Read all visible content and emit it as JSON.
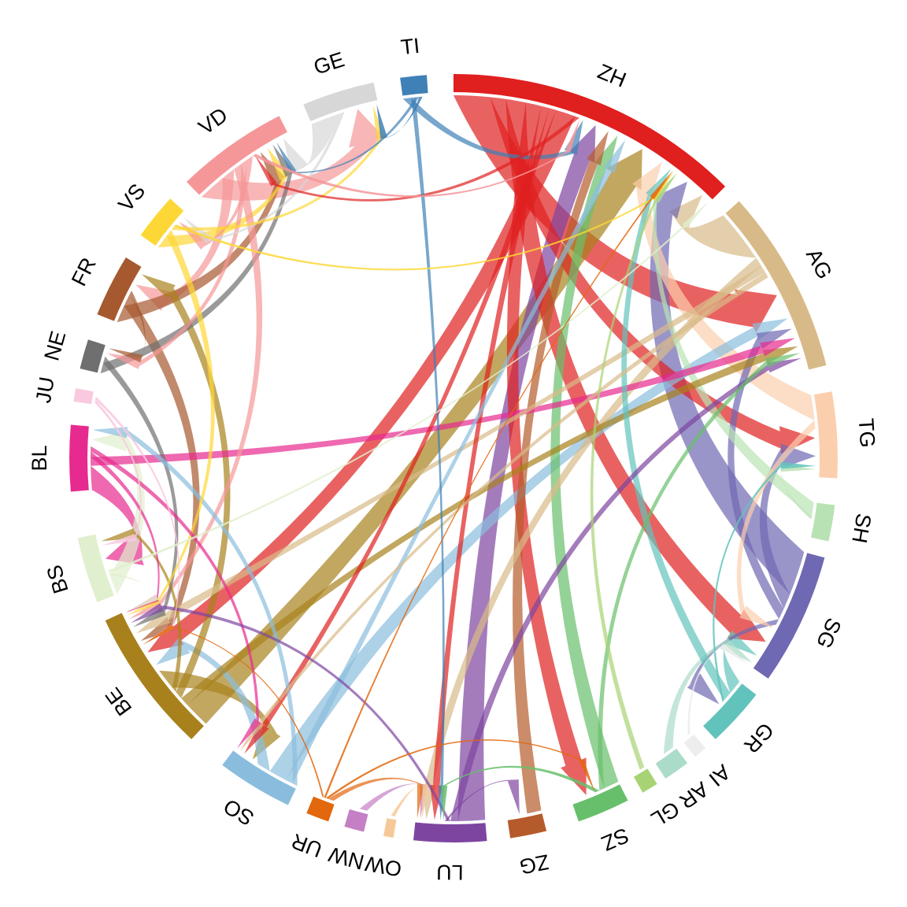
{
  "chart_data": {
    "type": "chord",
    "title": "",
    "description": "Chord diagram of flows between Swiss cantons, ribbons colored by source canton with arrowheads at target",
    "background": "#ffffff",
    "entities": [
      {
        "id": "ZH",
        "label": "ZH",
        "color": "#e01f1f",
        "arc": [
          0,
          45
        ]
      },
      {
        "id": "AG",
        "label": "AG",
        "color": "#d8ba89",
        "arc": [
          48,
          76
        ]
      },
      {
        "id": "TG",
        "label": "TG",
        "color": "#fbcfad",
        "arc": [
          80,
          93
        ]
      },
      {
        "id": "SH",
        "label": "SH",
        "color": "#b9e2b4",
        "arc": [
          97,
          102.5
        ]
      },
      {
        "id": "SG",
        "label": "SG",
        "color": "#6f68b2",
        "arc": [
          105,
          125
        ]
      },
      {
        "id": "GR",
        "label": "GR",
        "color": "#62c3bc",
        "arc": [
          128,
          137
        ]
      },
      {
        "id": "AI",
        "label": "AI",
        "color": "#ededed",
        "arc": [
          139,
          141
        ]
      },
      {
        "id": "AR",
        "label": "AR",
        "color": "#abdbc9",
        "arc": [
          142.5,
          146.5
        ]
      },
      {
        "id": "GL",
        "label": "GL",
        "color": "#a8d374",
        "arc": [
          148,
          150.5
        ]
      },
      {
        "id": "SZ",
        "label": "SZ",
        "color": "#68bf6b",
        "arc": [
          153,
          161
        ]
      },
      {
        "id": "ZG",
        "label": "ZG",
        "color": "#b55b2b",
        "arc": [
          166,
          171.5
        ]
      },
      {
        "id": "LU",
        "label": "LU",
        "color": "#7d45a0",
        "arc": [
          175,
          186
        ]
      },
      {
        "id": "OW",
        "label": "OW",
        "color": "#f7c897",
        "arc": [
          189,
          190.5
        ]
      },
      {
        "id": "NW",
        "label": "NW",
        "color": "#c57fc5",
        "arc": [
          193.5,
          196.5
        ]
      },
      {
        "id": "UR",
        "label": "UR",
        "color": "#e2670d",
        "arc": [
          199,
          202.5
        ]
      },
      {
        "id": "SO",
        "label": "SO",
        "color": "#8abddd",
        "arc": [
          205.5,
          217
        ]
      },
      {
        "id": "BE",
        "label": "BE",
        "color": "#a8811c",
        "arc": [
          223,
          245
        ]
      },
      {
        "id": "BS",
        "label": "BS",
        "color": "#e0efcd",
        "arc": [
          248,
          258
        ]
      },
      {
        "id": "BL",
        "label": "BL",
        "color": "#e72a8f",
        "arc": [
          265,
          275
        ]
      },
      {
        "id": "JU",
        "label": "JU",
        "color": "#f9c9df",
        "arc": [
          278.5,
          280.5
        ]
      },
      {
        "id": "NE",
        "label": "NE",
        "color": "#6f6f6f",
        "arc": [
          283.5,
          288
        ]
      },
      {
        "id": "FR",
        "label": "FR",
        "color": "#a6582f",
        "arc": [
          292,
          301.5
        ]
      },
      {
        "id": "VS",
        "label": "VS",
        "color": "#fdd735",
        "arc": [
          305.5,
          312.5
        ]
      },
      {
        "id": "VD",
        "label": "VD",
        "color": "#f59799",
        "arc": [
          316,
          333
        ]
      },
      {
        "id": "GE",
        "label": "GE",
        "color": "#d7d7d7",
        "arc": [
          337,
          348
        ]
      },
      {
        "id": "TI",
        "label": "TI",
        "color": "#3f80b7",
        "arc": [
          352,
          356
        ]
      }
    ],
    "flows": [
      {
        "from": "ZH",
        "to": "AG",
        "s": [
          0,
          5.8
        ],
        "t": [
          60.1,
          66.4
        ]
      },
      {
        "from": "ZH",
        "to": "TG",
        "s": [
          5.8,
          8.3
        ],
        "t": [
          85.3,
          88.3
        ]
      },
      {
        "from": "ZH",
        "to": "SG",
        "s": [
          8.3,
          11.5
        ],
        "t": [
          118.6,
          122.3
        ]
      },
      {
        "from": "ZH",
        "to": "SZ",
        "s": [
          11.5,
          14
        ],
        "t": [
          157,
          160
        ]
      },
      {
        "from": "ZH",
        "to": "LU",
        "s": [
          14,
          15.3
        ],
        "t": [
          182.4,
          183.6
        ]
      },
      {
        "from": "ZH",
        "to": "SO",
        "s": [
          15.3,
          16.4
        ],
        "t": [
          214.8,
          215.8
        ]
      },
      {
        "from": "ZH",
        "to": "BE",
        "s": [
          16.4,
          19.6
        ],
        "t": [
          236.2,
          239
        ]
      },
      {
        "from": "ZH",
        "to": "VD",
        "s": [
          19.6,
          20.3
        ],
        "t": [
          326.5,
          327
        ]
      },
      {
        "from": "AG",
        "to": "ZH",
        "s": [
          48,
          56.5
        ],
        "t": [
          42,
          44.8
        ]
      },
      {
        "from": "AG",
        "to": "LU",
        "s": [
          56.5,
          58
        ],
        "t": [
          183.6,
          185
        ]
      },
      {
        "from": "AG",
        "to": "BE",
        "s": [
          58,
          59.2
        ],
        "t": [
          240.4,
          241.8
        ]
      },
      {
        "from": "AG",
        "to": "SO",
        "s": [
          59.2,
          60.1
        ],
        "t": [
          215.8,
          216.4
        ]
      },
      {
        "from": "TG",
        "to": "ZH",
        "s": [
          80,
          84
        ],
        "t": [
          33.9,
          36.4
        ]
      },
      {
        "from": "TG",
        "to": "SG",
        "s": [
          84,
          85.3
        ],
        "t": [
          117.3,
          118.6
        ]
      },
      {
        "from": "SH",
        "to": "ZH",
        "s": [
          97,
          99.2
        ],
        "t": [
          37.7,
          38.4
        ]
      },
      {
        "from": "SH",
        "to": "TG",
        "s": [
          99.2,
          99.7
        ],
        "t": [
          91.5,
          92
        ]
      },
      {
        "from": "SG",
        "to": "ZH",
        "s": [
          105,
          112
        ],
        "t": [
          38.4,
          42
        ]
      },
      {
        "from": "SG",
        "to": "TG",
        "s": [
          112,
          114.5
        ],
        "t": [
          88.3,
          91
        ]
      },
      {
        "from": "SG",
        "to": "AG",
        "s": [
          114.5,
          116.3
        ],
        "t": [
          68.2,
          69.9
        ]
      },
      {
        "from": "SG",
        "to": "GR",
        "s": [
          116.3,
          117.3
        ],
        "t": [
          131.8,
          133.8
        ]
      },
      {
        "from": "GR",
        "to": "SG",
        "s": [
          128,
          130.3
        ],
        "t": [
          122.3,
          123.8
        ]
      },
      {
        "from": "GR",
        "to": "ZH",
        "s": [
          130.3,
          131.8
        ],
        "t": [
          36.4,
          37.4
        ]
      },
      {
        "from": "GR",
        "to": "TG",
        "s": [
          131.8,
          132.2
        ],
        "t": [
          91,
          91.5
        ]
      },
      {
        "from": "AI",
        "to": "SG",
        "s": [
          139.3,
          139.8
        ],
        "t": [
          124.8,
          125.1
        ]
      },
      {
        "from": "AR",
        "to": "SG",
        "s": [
          142.8,
          144.6
        ],
        "t": [
          123.8,
          125
        ]
      },
      {
        "from": "GL",
        "to": "ZH",
        "s": [
          148.3,
          149.1
        ],
        "t": [
          37.9,
          38.3
        ]
      },
      {
        "from": "SZ",
        "to": "ZH",
        "s": [
          153,
          155.5
        ],
        "t": [
          26.1,
          27.8
        ]
      },
      {
        "from": "SZ",
        "to": "AG",
        "s": [
          155.5,
          156.3
        ],
        "t": [
          72.7,
          73.5
        ]
      },
      {
        "from": "SZ",
        "to": "LU",
        "s": [
          156.3,
          157
        ],
        "t": [
          181.4,
          181.8
        ]
      },
      {
        "from": "ZG",
        "to": "ZH",
        "s": [
          166,
          168.3
        ],
        "t": [
          24.6,
          26.1
        ]
      },
      {
        "from": "LU",
        "to": "ZH",
        "s": [
          175,
          179.3
        ],
        "t": [
          21.6,
          24.6
        ]
      },
      {
        "from": "LU",
        "to": "AG",
        "s": [
          179.3,
          180.5
        ],
        "t": [
          73.5,
          74.4
        ]
      },
      {
        "from": "LU",
        "to": "BE",
        "s": [
          180.5,
          181
        ],
        "t": [
          242.6,
          243.3
        ]
      },
      {
        "from": "LU",
        "to": "ZG",
        "s": [
          181,
          181.4
        ],
        "t": [
          169,
          170
        ]
      },
      {
        "from": "OW",
        "to": "LU",
        "s": [
          189.3,
          189.9
        ],
        "t": [
          184.8,
          185.1
        ]
      },
      {
        "from": "NW",
        "to": "LU",
        "s": [
          193.8,
          195
        ],
        "t": [
          185,
          185.5
        ]
      },
      {
        "from": "UR",
        "to": "LU",
        "s": [
          199.3,
          200.2
        ],
        "t": [
          185.5,
          186
        ]
      },
      {
        "from": "UR",
        "to": "SZ",
        "s": [
          200.2,
          200.6
        ],
        "t": [
          156.9,
          157.2
        ]
      },
      {
        "from": "UR",
        "to": "ZH",
        "s": [
          200.6,
          200.9
        ],
        "t": [
          37.2,
          37.45
        ]
      },
      {
        "from": "UR",
        "to": "BE",
        "s": [
          200.9,
          201.2
        ],
        "t": [
          238.9,
          239.15
        ]
      },
      {
        "from": "SO",
        "to": "BL",
        "s": [
          205.5,
          206.3
        ],
        "t": [
          274,
          275
        ]
      },
      {
        "from": "SO",
        "to": "ZH",
        "s": [
          206.3,
          207.5
        ],
        "t": [
          27.8,
          28.9
        ]
      },
      {
        "from": "SO",
        "to": "AG",
        "s": [
          207.5,
          210.4
        ],
        "t": [
          66.4,
          68.2
        ]
      },
      {
        "from": "SO",
        "to": "BE",
        "s": [
          210.4,
          212.6
        ],
        "t": [
          234.2,
          236.2
        ]
      },
      {
        "from": "BE",
        "to": "ZH",
        "s": [
          223,
          227.2
        ],
        "t": [
          28.9,
          33.9
        ]
      },
      {
        "from": "BE",
        "to": "AG",
        "s": [
          227.2,
          228.6
        ],
        "t": [
          71.3,
          72.7
        ]
      },
      {
        "from": "BE",
        "to": "FR",
        "s": [
          228.6,
          229.9
        ],
        "t": [
          299.8,
          301.3
        ]
      },
      {
        "from": "BE",
        "to": "BS",
        "s": [
          229.9,
          230.8
        ],
        "t": [
          256.3,
          257.2
        ]
      },
      {
        "from": "BE",
        "to": "SO",
        "s": [
          230.8,
          234.2
        ],
        "t": [
          212.6,
          214.8
        ]
      },
      {
        "from": "BS",
        "to": "BL",
        "s": [
          248,
          251.2
        ],
        "t": [
          271.9,
          274
        ]
      },
      {
        "from": "BS",
        "to": "BE",
        "s": [
          251.2,
          251.6
        ],
        "t": [
          244.7,
          245
        ]
      },
      {
        "from": "BS",
        "to": "ZH",
        "s": [
          251.6,
          252
        ],
        "t": [
          44.7,
          45
        ]
      },
      {
        "from": "BL",
        "to": "BS",
        "s": [
          265,
          268.8
        ],
        "t": [
          252,
          255.8
        ]
      },
      {
        "from": "BL",
        "to": "AG",
        "s": [
          268.8,
          270.2
        ],
        "t": [
          69.9,
          71.3
        ]
      },
      {
        "from": "BL",
        "to": "BE",
        "s": [
          270.2,
          271.1
        ],
        "t": [
          244.5,
          245
        ]
      },
      {
        "from": "BL",
        "to": "SO",
        "s": [
          271.1,
          271.9
        ],
        "t": [
          216.4,
          217
        ]
      },
      {
        "from": "JU",
        "to": "BS",
        "s": [
          278.8,
          279.3
        ],
        "t": [
          255.8,
          256.3
        ]
      },
      {
        "from": "JU",
        "to": "BE",
        "s": [
          279.3,
          279.8
        ],
        "t": [
          238.9,
          239.2
        ]
      },
      {
        "from": "NE",
        "to": "VD",
        "s": [
          283.5,
          285.2
        ],
        "t": [
          329.6,
          330.5
        ]
      },
      {
        "from": "NE",
        "to": "BE",
        "s": [
          285.2,
          286.3
        ],
        "t": [
          241.8,
          242.6
        ]
      },
      {
        "from": "FR",
        "to": "VD",
        "s": [
          292,
          294.8
        ],
        "t": [
          327,
          328.5
        ]
      },
      {
        "from": "FR",
        "to": "BE",
        "s": [
          294.8,
          296.8
        ],
        "t": [
          239,
          240.4
        ]
      },
      {
        "from": "FR",
        "to": "NE",
        "s": [
          296.8,
          297.5
        ],
        "t": [
          287.4,
          288
        ]
      },
      {
        "from": "VS",
        "to": "VD",
        "s": [
          305.5,
          307.8
        ],
        "t": [
          328.5,
          329.6
        ]
      },
      {
        "from": "VS",
        "to": "BE",
        "s": [
          307.8,
          309
        ],
        "t": [
          244,
          244.5
        ]
      },
      {
        "from": "VS",
        "to": "GE",
        "s": [
          309,
          309.7
        ],
        "t": [
          346.8,
          347.5
        ]
      },
      {
        "from": "VS",
        "to": "ZH",
        "s": [
          309.7,
          310.1
        ],
        "t": [
          37.4,
          37.7
        ]
      },
      {
        "from": "VD",
        "to": "GE",
        "s": [
          316,
          320.5
        ],
        "t": [
          342.5,
          346.8
        ]
      },
      {
        "from": "VD",
        "to": "FR",
        "s": [
          320.5,
          322.8
        ],
        "t": [
          297.5,
          299.8
        ]
      },
      {
        "from": "VD",
        "to": "BE",
        "s": [
          322.8,
          324.2
        ],
        "t": [
          243.3,
          244
        ]
      },
      {
        "from": "VD",
        "to": "NE",
        "s": [
          324.2,
          325.2
        ],
        "t": [
          286.3,
          287.4
        ]
      },
      {
        "from": "VD",
        "to": "VS",
        "s": [
          325.2,
          326.4
        ],
        "t": [
          310.1,
          311.4
        ]
      },
      {
        "from": "VD",
        "to": "ZH",
        "s": [
          326.4,
          327
        ],
        "t": [
          20.3,
          20.6
        ]
      },
      {
        "from": "GE",
        "to": "VD",
        "s": [
          337,
          341.8
        ],
        "t": [
          331,
          333
        ]
      },
      {
        "from": "GE",
        "to": "VS",
        "s": [
          341.8,
          342.5
        ],
        "t": [
          311.4,
          312.1
        ]
      },
      {
        "from": "TI",
        "to": "ZH",
        "s": [
          352,
          353.3
        ],
        "t": [
          20.3,
          21.6
        ]
      },
      {
        "from": "TI",
        "to": "LU",
        "s": [
          353.3,
          354
        ],
        "t": [
          181.8,
          182.3
        ]
      },
      {
        "from": "TI",
        "to": "VD",
        "s": [
          354,
          354.6
        ],
        "t": [
          330.5,
          331
        ]
      },
      {
        "from": "TI",
        "to": "GE",
        "s": [
          354.6,
          355.1
        ],
        "t": [
          347.5,
          348
        ]
      }
    ]
  }
}
